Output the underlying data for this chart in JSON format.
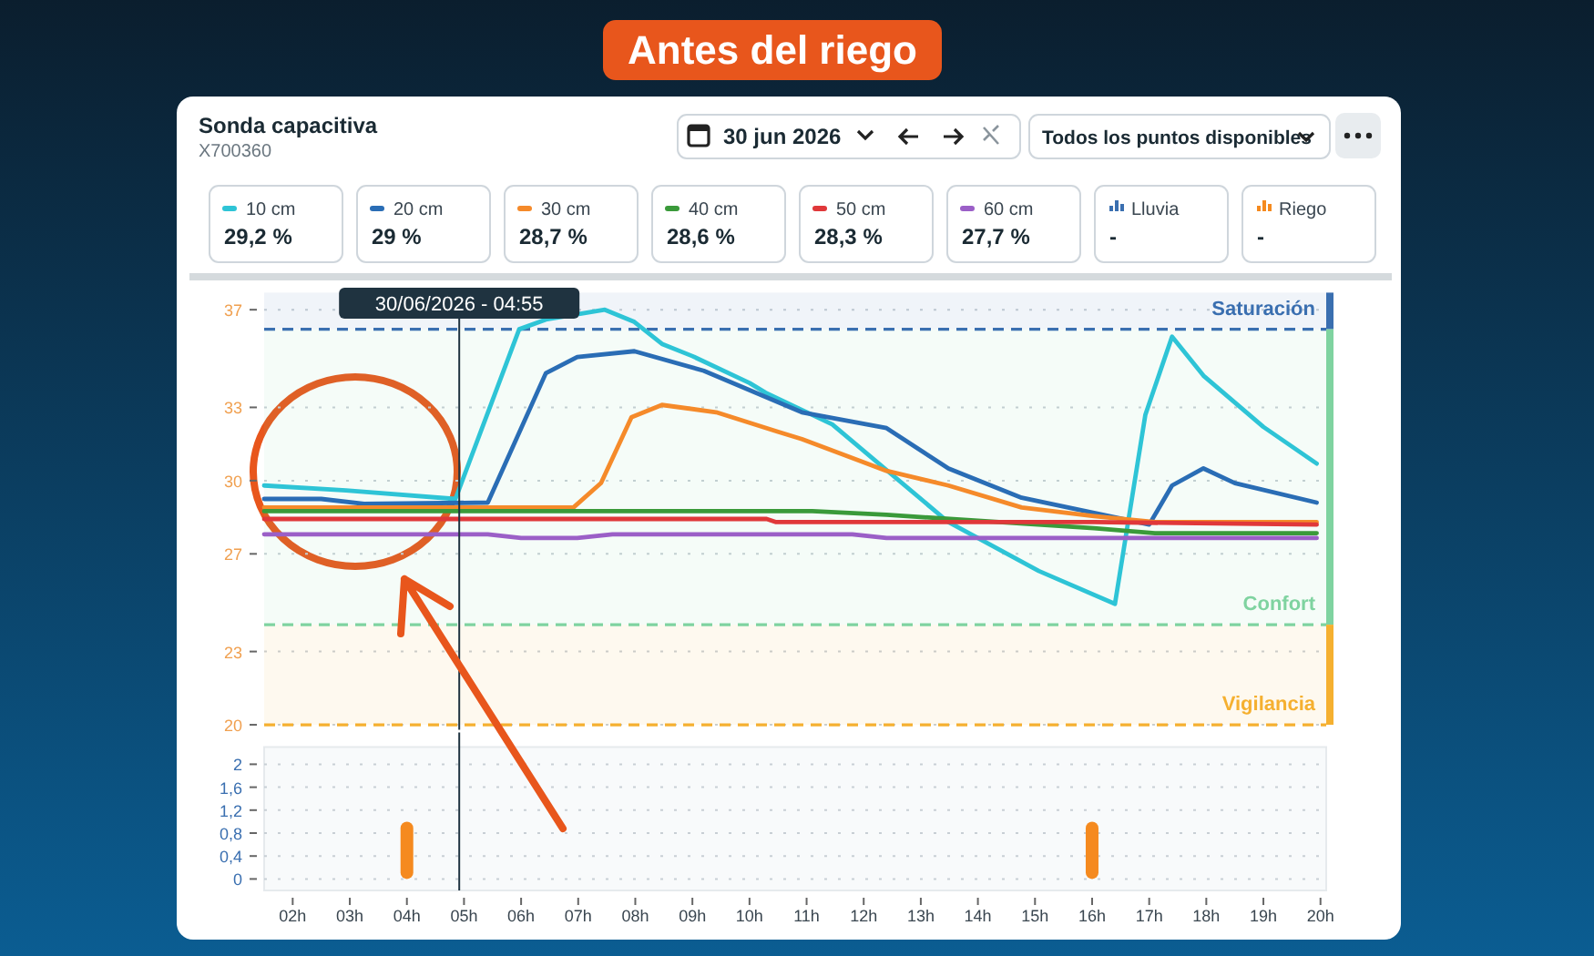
{
  "chart_data": [
    {
      "type": "other",
      "title": "Antes del riego",
      "annotations": [
        "Sonda capacitiva",
        "X700360",
        "30 jun 2026",
        "Todos los puntos disponibles"
      ]
    },
    {
      "type": "line",
      "xlim": [
        "2026-06-30T01:30",
        "2026-06-30T20:06"
      ],
      "ylim": [
        19.8,
        37.7
      ],
      "tick_labels": "y",
      "grid": "y",
      "legend": "top",
      "yticks": [
        20,
        23,
        27,
        30,
        33,
        37
      ],
      "annotations": [
        "29,2 %",
        "29 %",
        "28,7 %",
        "28,6 %",
        "28,3 %",
        "27,7 %"
      ],
      "series": [
        {
          "name": "10 cm",
          "color": "#2ec4d6",
          "x": [
            "2026-06-30T01:30",
            "2026-06-30T02:56",
            "2026-06-30T04:51",
            "2026-06-30T05:58",
            "2026-06-30T06:26",
            "2026-06-30T07:28",
            "2026-06-30T07:59",
            "2026-06-30T08:28",
            "2026-06-30T09:00",
            "2026-06-30T10:00",
            "2026-06-30T10:17",
            "2026-06-30T11:27",
            "2026-06-30T13:29",
            "2026-06-30T15:04",
            "2026-06-30T16:24",
            "2026-06-30T16:56",
            "2026-06-30T17:24",
            "2026-06-30T17:57",
            "2026-06-30T19:00",
            "2026-06-30T19:56"
          ],
          "values": [
            29.8,
            29.6,
            29.25,
            36.2,
            36.6,
            37.0,
            36.5,
            35.6,
            35.1,
            34.0,
            33.6,
            32.3,
            28.3,
            26.3,
            24.95,
            32.7,
            35.9,
            34.3,
            32.2,
            30.7
          ]
        },
        {
          "name": "20 cm",
          "color": "#2a6db5",
          "x": [
            "2026-06-30T01:30",
            "2026-06-30T02:30",
            "2026-06-30T03:15",
            "2026-06-30T05:25",
            "2026-06-30T06:26",
            "2026-06-30T06:59",
            "2026-06-30T07:59",
            "2026-06-30T09:12",
            "2026-06-30T10:55",
            "2026-06-30T12:24",
            "2026-06-30T13:29",
            "2026-06-30T14:46",
            "2026-06-30T17:00",
            "2026-06-30T17:24",
            "2026-06-30T17:57",
            "2026-06-30T18:30",
            "2026-06-30T19:56"
          ],
          "values": [
            29.25,
            29.25,
            29.05,
            29.1,
            34.4,
            35.06,
            35.3,
            34.5,
            32.8,
            32.15,
            30.5,
            29.3,
            28.2,
            29.8,
            30.5,
            29.9,
            29.1
          ]
        },
        {
          "name": "30 cm",
          "color": "#f58a2a",
          "x": [
            "2026-06-30T01:30",
            "2026-06-30T06:55",
            "2026-06-30T07:24",
            "2026-06-30T07:56",
            "2026-06-30T08:28",
            "2026-06-30T09:25",
            "2026-06-30T10:30",
            "2026-06-30T10:55",
            "2026-06-30T12:24",
            "2026-06-30T13:29",
            "2026-06-30T14:46",
            "2026-06-30T16:02",
            "2026-06-30T17:06",
            "2026-06-30T19:56"
          ],
          "values": [
            28.9,
            28.9,
            29.9,
            32.6,
            33.1,
            32.8,
            32.0,
            31.7,
            30.4,
            29.8,
            28.9,
            28.55,
            28.3,
            28.3
          ]
        },
        {
          "name": "40 cm",
          "color": "#3a9a3a",
          "x": [
            "2026-06-30T01:30",
            "2026-06-30T11:06",
            "2026-06-30T12:24",
            "2026-06-30T16:02",
            "2026-06-30T17:06",
            "2026-06-30T19:56"
          ],
          "values": [
            28.75,
            28.75,
            28.6,
            28.05,
            27.85,
            27.85
          ]
        },
        {
          "name": "50 cm",
          "color": "#e0383a",
          "x": [
            "2026-06-30T01:30",
            "2026-06-30T10:18",
            "2026-06-30T10:28",
            "2026-06-30T16:02",
            "2026-06-30T19:56"
          ],
          "values": [
            28.43,
            28.43,
            28.3,
            28.3,
            28.2
          ]
        },
        {
          "name": "60 cm",
          "color": "#9b5fc7",
          "x": [
            "2026-06-30T01:30",
            "2026-06-30T05:25",
            "2026-06-30T06:00",
            "2026-06-30T06:59",
            "2026-06-30T07:36",
            "2026-06-30T11:48",
            "2026-06-30T12:24",
            "2026-06-30T19:56"
          ],
          "values": [
            27.8,
            27.8,
            27.65,
            27.65,
            27.8,
            27.8,
            27.65,
            27.65
          ]
        }
      ],
      "ref_lines": [
        {
          "axis": "x",
          "value": "2026-06-30T04:55",
          "label": "30/06/2026 - 04:55",
          "color": "#1f3340",
          "line_style": "solid"
        },
        {
          "axis": "y",
          "value": 36.2,
          "color": "#3a6fb0",
          "line_style": "dashed"
        },
        {
          "axis": "y",
          "value": 24.1,
          "color": "#7fd3a0",
          "line_style": "dashed"
        },
        {
          "axis": "y",
          "value": 20,
          "color": "#f5b030",
          "line_style": "dashed"
        }
      ],
      "bands": [
        {
          "axis": "y",
          "from": 36.2,
          "to": 37.7,
          "label": "Saturación",
          "color": "#3a6fb0"
        },
        {
          "axis": "y",
          "from": 24.1,
          "to": 36.2,
          "label": "Confort",
          "color": "#7fd3a0"
        },
        {
          "axis": "y",
          "from": 20,
          "to": 24.1,
          "label": "Vigilancia",
          "color": "#f5b030"
        }
      ]
    },
    {
      "type": "bar",
      "x": [
        "2026-06-30T04:00",
        "2026-06-30T16:00"
      ],
      "xlim": [
        "2026-06-30T01:30",
        "2026-06-30T20:06"
      ],
      "ylim": [
        -0.2,
        2.3
      ],
      "grid": "y",
      "legend": "top",
      "xticks": [
        {
          "value": "2026-06-30T02:00",
          "label": "02h"
        },
        {
          "value": "2026-06-30T03:00",
          "label": "03h"
        },
        {
          "value": "2026-06-30T04:00",
          "label": "04h"
        },
        {
          "value": "2026-06-30T05:00",
          "label": "05h"
        },
        {
          "value": "2026-06-30T06:00",
          "label": "06h"
        },
        {
          "value": "2026-06-30T07:00",
          "label": "07h"
        },
        {
          "value": "2026-06-30T08:00",
          "label": "08h"
        },
        {
          "value": "2026-06-30T09:00",
          "label": "09h"
        },
        {
          "value": "2026-06-30T10:00",
          "label": "10h"
        },
        {
          "value": "2026-06-30T11:00",
          "label": "11h"
        },
        {
          "value": "2026-06-30T12:00",
          "label": "12h"
        },
        {
          "value": "2026-06-30T13:00",
          "label": "13h"
        },
        {
          "value": "2026-06-30T14:00",
          "label": "14h"
        },
        {
          "value": "2026-06-30T15:00",
          "label": "15h"
        },
        {
          "value": "2026-06-30T16:00",
          "label": "16h"
        },
        {
          "value": "2026-06-30T17:00",
          "label": "17h"
        },
        {
          "value": "2026-06-30T18:00",
          "label": "18h"
        },
        {
          "value": "2026-06-30T19:00",
          "label": "19h"
        },
        {
          "value": "2026-06-30T20:00",
          "label": "20h"
        }
      ],
      "yticks": [
        {
          "value": 0,
          "label": "0"
        },
        {
          "value": 0.4,
          "label": "0,4"
        },
        {
          "value": 0.8,
          "label": "0,8"
        },
        {
          "value": 1.2,
          "label": "1,2"
        },
        {
          "value": 1.6,
          "label": "1,6"
        },
        {
          "value": 2,
          "label": "2"
        }
      ],
      "annotations": [
        "-",
        "-"
      ],
      "series": [
        {
          "name": "Lluvia",
          "color": "#3a6fb0",
          "values": [
            null,
            null
          ]
        },
        {
          "name": "Riego",
          "color": "#f58a1f",
          "values": [
            1,
            1
          ]
        }
      ],
      "ref_lines": [
        {
          "axis": "x",
          "value": "2026-06-30T04:55",
          "color": "#1f3340",
          "line_style": "solid"
        }
      ]
    }
  ]
}
